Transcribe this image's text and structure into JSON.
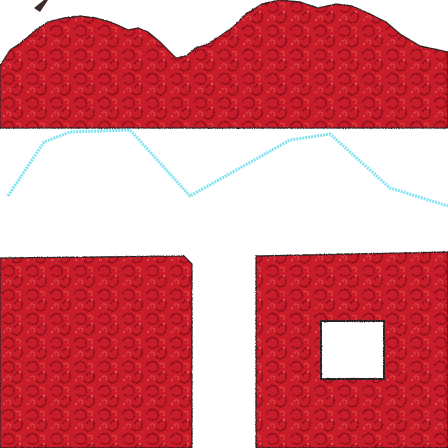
{
  "image": {
    "subject": "game-tile-graphic",
    "icons": [
      "red-patterned-blocks",
      "cyan-zigzag-line",
      "white-window"
    ]
  },
  "colors": {
    "background": "#ffffff",
    "brick_red": "#c81f2a",
    "brick_red_dark": "#8f0f1a",
    "brick_red_light": "#e04040",
    "zigzag_cyan": "#7fe3f2",
    "window_white": "#ffffff",
    "outline_dark": "#2a2020"
  }
}
